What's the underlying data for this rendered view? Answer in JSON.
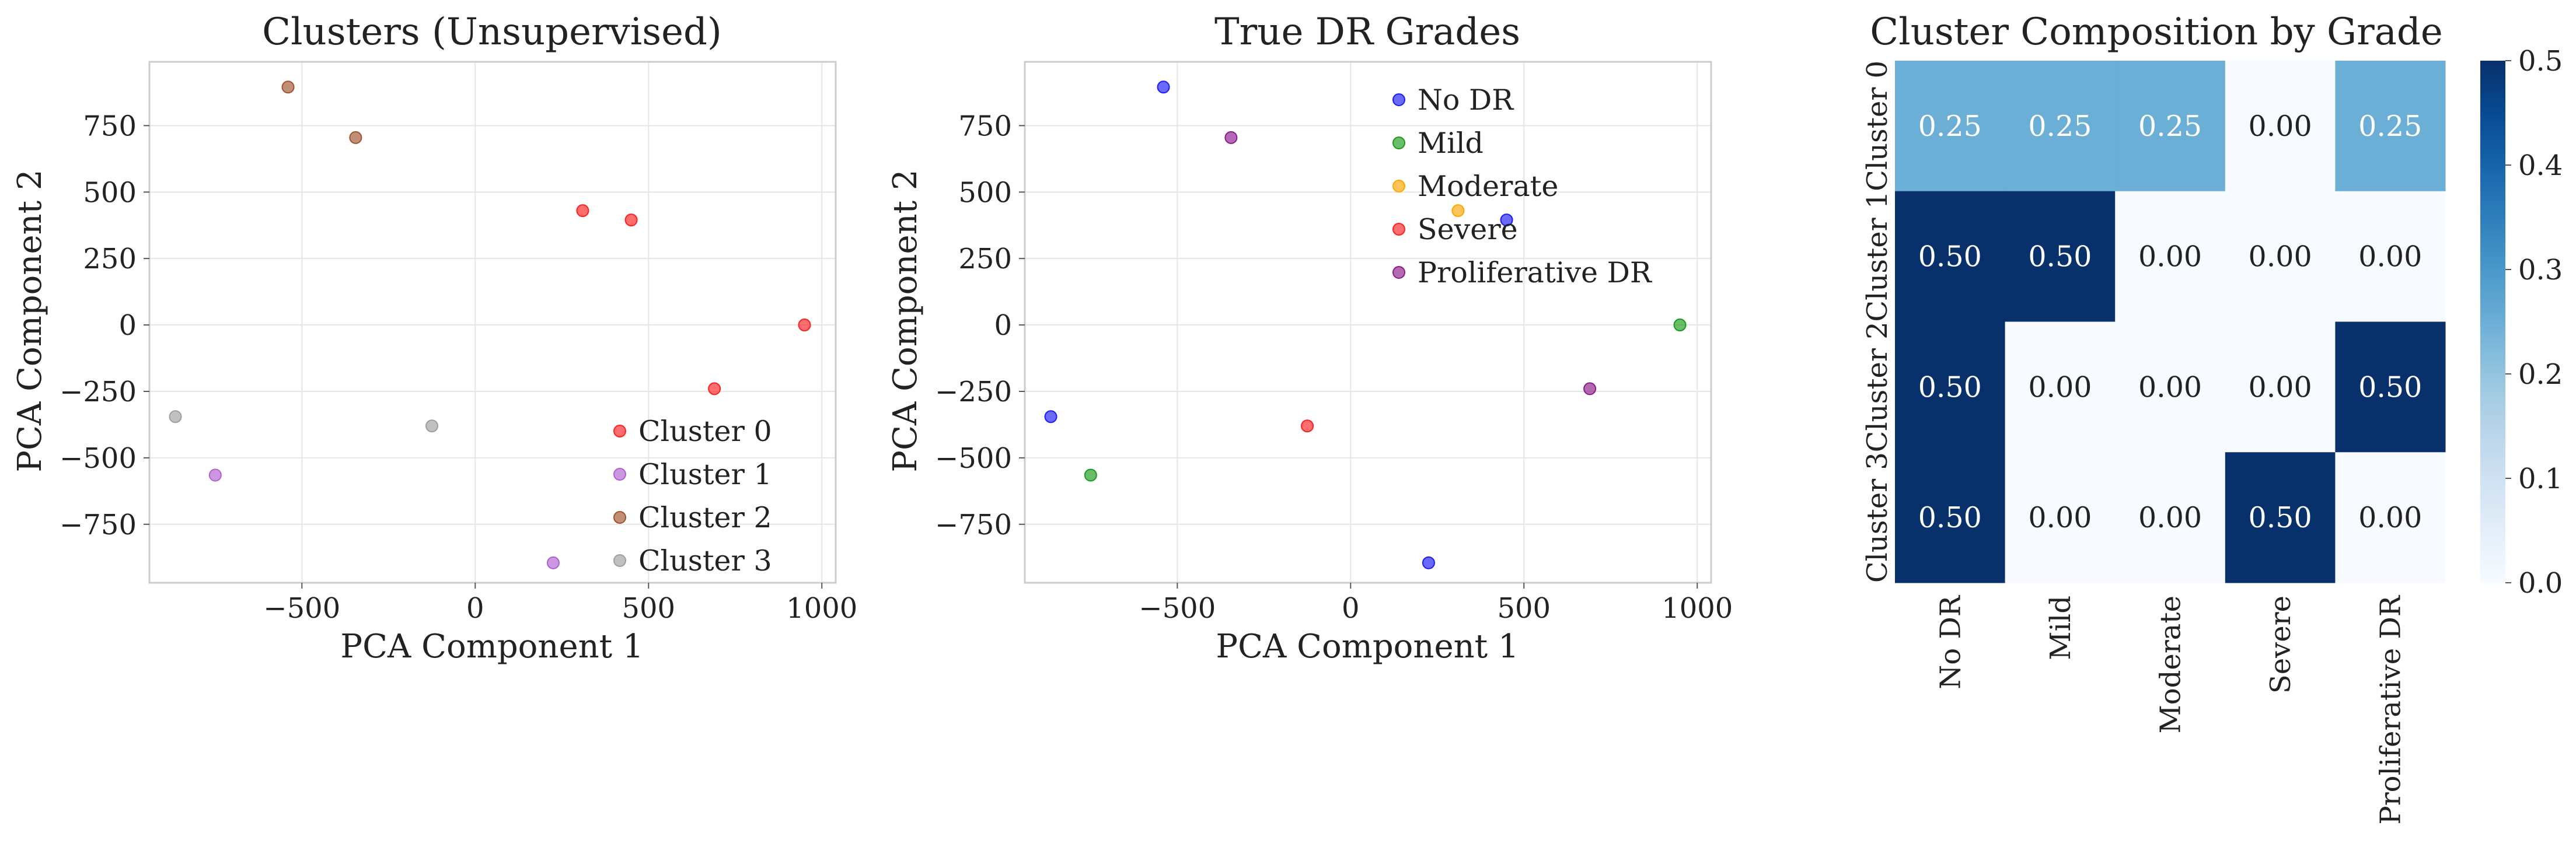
{
  "figure": {
    "background": "#ffffff"
  },
  "panels": {
    "clusters": {
      "title": "Clusters (Unsupervised)",
      "xlabel": "PCA Component 1",
      "ylabel": "PCA Component 2",
      "legend_position": "lower-right"
    },
    "grades": {
      "title": "True DR Grades",
      "xlabel": "PCA Component 1",
      "ylabel": "PCA Component 2",
      "legend_position": "upper-right"
    },
    "composition": {
      "title": "Cluster Composition by Grade"
    }
  },
  "chart_data": [
    {
      "type": "scatter",
      "title": "Clusters (Unsupervised)",
      "xlabel": "PCA Component 1",
      "ylabel": "PCA Component 2",
      "xlim": [
        -940,
        1040
      ],
      "ylim": [
        -970,
        990
      ],
      "xticks": [
        -500,
        0,
        500,
        1000
      ],
      "yticks": [
        -750,
        -500,
        -250,
        0,
        250,
        500,
        750
      ],
      "xtick_labels": [
        "−500",
        "0",
        "500",
        "1000"
      ],
      "ytick_labels": [
        "−750",
        "−500",
        "−250",
        "0",
        "250",
        "500",
        "750"
      ],
      "grid": true,
      "legend": "lower-right",
      "series": [
        {
          "name": "Cluster 0",
          "color": "#ff2020",
          "points": [
            [
              310,
              430
            ],
            [
              450,
              395
            ],
            [
              950,
              0
            ],
            [
              690,
              -240
            ]
          ]
        },
        {
          "name": "Cluster 1",
          "color": "#b060d0",
          "points": [
            [
              -750,
              -565
            ],
            [
              225,
              -895
            ]
          ]
        },
        {
          "name": "Cluster 2",
          "color": "#a0522d",
          "points": [
            [
              -540,
              895
            ],
            [
              -345,
              705
            ]
          ]
        },
        {
          "name": "Cluster 3",
          "color": "#9e9e9e",
          "points": [
            [
              -865,
              -345
            ],
            [
              -125,
              -380
            ]
          ]
        }
      ]
    },
    {
      "type": "scatter",
      "title": "True DR Grades",
      "xlabel": "PCA Component 1",
      "ylabel": "PCA Component 2",
      "xlim": [
        -940,
        1040
      ],
      "ylim": [
        -970,
        990
      ],
      "xticks": [
        -500,
        0,
        500,
        1000
      ],
      "yticks": [
        -750,
        -500,
        -250,
        0,
        250,
        500,
        750
      ],
      "xtick_labels": [
        "−500",
        "0",
        "500",
        "1000"
      ],
      "ytick_labels": [
        "−750",
        "−500",
        "−250",
        "0",
        "250",
        "500",
        "750"
      ],
      "grid": true,
      "legend": "upper-right",
      "series": [
        {
          "name": "No DR",
          "color": "#1a1aff",
          "points": [
            [
              -540,
              895
            ],
            [
              450,
              395
            ],
            [
              -865,
              -345
            ],
            [
              225,
              -895
            ]
          ]
        },
        {
          "name": "Mild",
          "color": "#1a9a1a",
          "points": [
            [
              950,
              0
            ],
            [
              -750,
              -565
            ]
          ]
        },
        {
          "name": "Moderate",
          "color": "#ffa500",
          "points": [
            [
              310,
              430
            ]
          ]
        },
        {
          "name": "Severe",
          "color": "#ff2020",
          "points": [
            [
              -125,
              -380
            ]
          ]
        },
        {
          "name": "Proliferative DR",
          "color": "#8b1a8b",
          "points": [
            [
              -345,
              705
            ],
            [
              690,
              -240
            ]
          ]
        }
      ]
    },
    {
      "type": "heatmap",
      "title": "Cluster Composition by Grade",
      "rows": [
        "Cluster 0",
        "Cluster 1",
        "Cluster 2",
        "Cluster 3"
      ],
      "columns": [
        "No DR",
        "Mild",
        "Moderate",
        "Severe",
        "Proliferative DR"
      ],
      "values": [
        [
          0.25,
          0.25,
          0.25,
          0.0,
          0.25
        ],
        [
          0.5,
          0.5,
          0.0,
          0.0,
          0.0
        ],
        [
          0.5,
          0.0,
          0.0,
          0.0,
          0.5
        ],
        [
          0.5,
          0.0,
          0.0,
          0.5,
          0.0
        ]
      ],
      "value_labels": [
        [
          "0.25",
          "0.25",
          "0.25",
          "0.00",
          "0.25"
        ],
        [
          "0.50",
          "0.50",
          "0.00",
          "0.00",
          "0.00"
        ],
        [
          "0.50",
          "0.00",
          "0.00",
          "0.00",
          "0.50"
        ],
        [
          "0.50",
          "0.00",
          "0.00",
          "0.50",
          "0.00"
        ]
      ],
      "colormap": "Blues",
      "vmin": 0,
      "vmax": 0.5,
      "colorbar_ticks": [
        0,
        0.1,
        0.2,
        0.3,
        0.4,
        0.5
      ],
      "colorbar_tick_labels": [
        "0.0",
        "0.1",
        "0.2",
        "0.3",
        "0.4",
        "0.5"
      ]
    }
  ]
}
